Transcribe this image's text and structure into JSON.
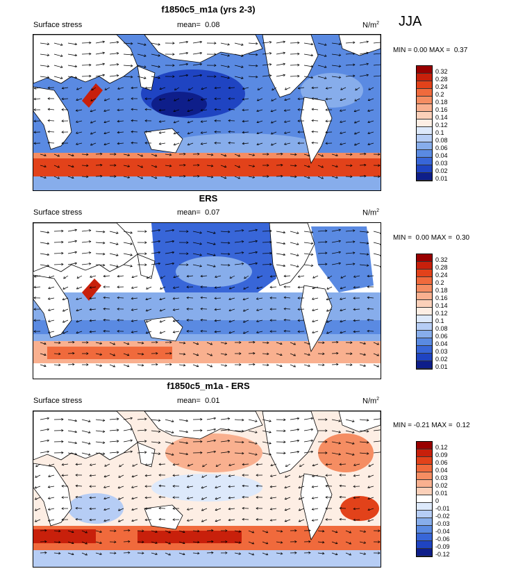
{
  "season": "JJA",
  "panels": [
    {
      "title": "f1850c5_m1a (yrs 2-3)",
      "variable": "Surface stress",
      "mean_label": "mean=",
      "mean_value": "0.08",
      "units_base": "N/m",
      "units_exp": "2",
      "min_label": "MIN =",
      "min_value": "0.00",
      "max_label": "MAX =",
      "max_value": "0.37",
      "colorbar": [
        "0.32",
        "0.28",
        "0.24",
        "0.2",
        "0.18",
        "0.16",
        "0.14",
        "0.12",
        "0.1",
        "0.08",
        "0.06",
        "0.04",
        "0.03",
        "0.02",
        "0.01"
      ]
    },
    {
      "title": "ERS",
      "variable": "Surface stress",
      "mean_label": "mean=",
      "mean_value": "0.07",
      "units_base": "N/m",
      "units_exp": "2",
      "min_label": "MIN =",
      "min_value": "0.00",
      "max_label": "MAX =",
      "max_value": "0.30",
      "colorbar": [
        "0.32",
        "0.28",
        "0.24",
        "0.2",
        "0.18",
        "0.16",
        "0.14",
        "0.12",
        "0.1",
        "0.08",
        "0.06",
        "0.04",
        "0.03",
        "0.02",
        "0.01"
      ]
    },
    {
      "title": "f1850c5_m1a - ERS",
      "variable": "Surface stress",
      "mean_label": "mean=",
      "mean_value": "0.01",
      "units_base": "N/m",
      "units_exp": "2",
      "min_label": "MIN =",
      "min_value": "-0.21",
      "max_label": "MAX =",
      "max_value": "0.12",
      "colorbar": [
        "0.12",
        "0.09",
        "0.06",
        "0.04",
        "0.03",
        "0.02",
        "0.01",
        "0",
        "-0.01",
        "-0.02",
        "-0.03",
        "-0.04",
        "-0.06",
        "-0.09",
        "-0.12"
      ]
    }
  ],
  "colors": {
    "abs_scale": [
      "#990000",
      "#c8200b",
      "#e2421a",
      "#f06a3c",
      "#f58d62",
      "#f9b08f",
      "#fbd0b9",
      "#fdeee4",
      "#dde9fb",
      "#b6cdf5",
      "#87adeb",
      "#5a8ae2",
      "#3866d8",
      "#1f44c2",
      "#0e1e8a"
    ],
    "diff_scale": [
      "#990000",
      "#c8200b",
      "#e2421a",
      "#f06a3c",
      "#f58d62",
      "#f9b08f",
      "#fbd0b9",
      "#ffffff",
      "#dde9fb",
      "#b6cdf5",
      "#87adeb",
      "#5a8ae2",
      "#3866d8",
      "#1f44c2",
      "#0e1e8a"
    ]
  }
}
